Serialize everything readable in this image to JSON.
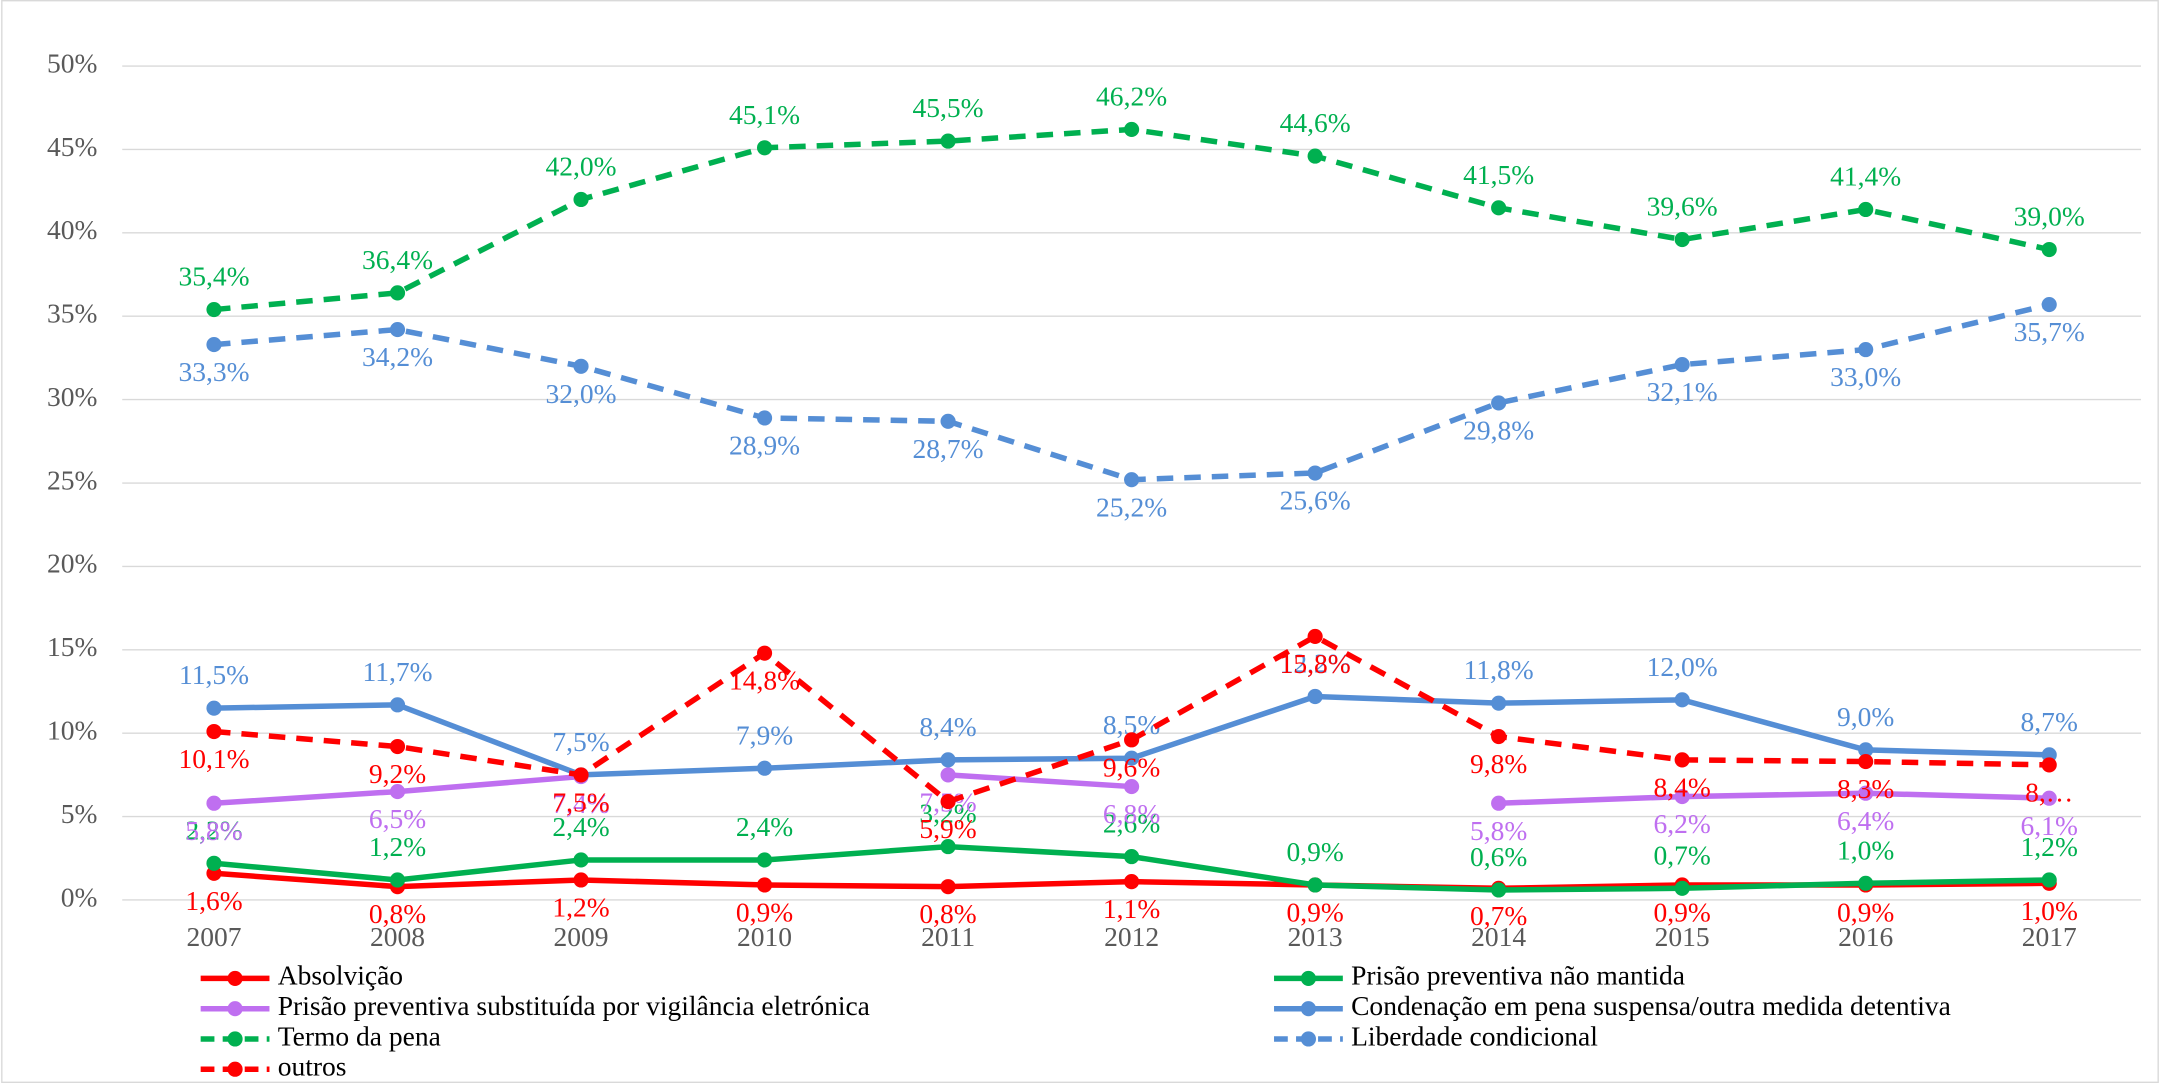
{
  "chart_data": {
    "type": "line",
    "categories": [
      "2007",
      "2008",
      "2009",
      "2010",
      "2011",
      "2012",
      "2013",
      "2014",
      "2015",
      "2016",
      "2017"
    ],
    "ylim": [
      0,
      50
    ],
    "yticks": [
      {
        "value": 0,
        "label": "0%"
      },
      {
        "value": 5,
        "label": "5%"
      },
      {
        "value": 10,
        "label": "10%"
      },
      {
        "value": 15,
        "label": "15%"
      },
      {
        "value": 20,
        "label": "20%"
      },
      {
        "value": 25,
        "label": "25%"
      },
      {
        "value": 30,
        "label": "30%"
      },
      {
        "value": 35,
        "label": "35%"
      },
      {
        "value": 40,
        "label": "40%"
      },
      {
        "value": 45,
        "label": "45%"
      },
      {
        "value": 50,
        "label": "50%"
      }
    ],
    "grid": true,
    "legend": "bottom",
    "series": [
      {
        "name": "Absolvição",
        "color": "#ff0000",
        "dashed": false,
        "values": [
          1.6,
          0.8,
          1.2,
          0.9,
          0.8,
          1.1,
          0.9,
          0.7,
          0.9,
          0.9,
          1.0
        ],
        "value_labels": [
          "1,6%",
          "0,8%",
          "1,2%",
          "0,9%",
          "0,8%",
          "1,1%",
          "0,9%",
          "0,7%",
          "0,9%",
          "0,9%",
          "1,0%"
        ]
      },
      {
        "name": "Prisão preventiva não mantida",
        "color": "#00b050",
        "dashed": false,
        "values": [
          2.2,
          1.2,
          2.4,
          2.4,
          3.2,
          2.6,
          0.9,
          0.6,
          0.7,
          1.0,
          1.2
        ],
        "value_labels": [
          "2,2%",
          "1,2%",
          "2,4%",
          "2,4%",
          "3,2%",
          "2,6%",
          "0,9%",
          "0,6%",
          "0,7%",
          "1,0%",
          "1,2%"
        ]
      },
      {
        "name": "Prisão preventiva substituída por vigilância eletrónica",
        "color": "#bf6ff0",
        "dashed": false,
        "values": [
          5.8,
          6.5,
          7.4,
          null,
          7.5,
          6.8,
          null,
          5.8,
          6.2,
          6.4,
          6.1
        ],
        "value_labels": [
          "5,8%",
          "6,5%",
          "7,4%",
          null,
          "7,5%",
          "6,8%",
          null,
          "5,8%",
          "6,2%",
          "6,4%",
          "6,1%"
        ]
      },
      {
        "name": "Condenação em pena suspensa/outra medida detentiva",
        "color": "#558ed5",
        "dashed": false,
        "values": [
          11.5,
          11.7,
          7.5,
          7.9,
          8.4,
          8.5,
          12.2,
          11.8,
          12.0,
          9.0,
          8.7
        ],
        "value_labels": [
          "11,5%",
          "11,7%",
          "7,5%",
          "7,9%",
          "8,4%",
          "8,5%",
          "12,2%",
          "11,8%",
          "12,0%",
          "9,0%",
          "8,7%"
        ]
      },
      {
        "name": "Termo da pena",
        "color": "#00b050",
        "dashed": true,
        "values": [
          35.4,
          36.4,
          42.0,
          45.1,
          45.5,
          46.2,
          44.6,
          41.5,
          39.6,
          41.4,
          39.0
        ],
        "value_labels": [
          "35,4%",
          "36,4%",
          "42,0%",
          "45,1%",
          "45,5%",
          "46,2%",
          "44,6%",
          "41,5%",
          "39,6%",
          "41,4%",
          "39,0%"
        ]
      },
      {
        "name": "Liberdade condicional",
        "color": "#558ed5",
        "dashed": true,
        "values": [
          33.3,
          34.2,
          32.0,
          28.9,
          28.7,
          25.2,
          25.6,
          29.8,
          32.1,
          33.0,
          35.7
        ],
        "value_labels": [
          "33,3%",
          "34,2%",
          "32,0%",
          "28,9%",
          "28,7%",
          "25,2%",
          "25,6%",
          "29,8%",
          "32,1%",
          "33,0%",
          "35,7%"
        ]
      },
      {
        "name": "outros",
        "color": "#ff0000",
        "dashed": true,
        "values": [
          10.1,
          9.2,
          7.5,
          14.8,
          5.9,
          9.6,
          15.8,
          9.8,
          8.4,
          8.3,
          8.1
        ],
        "value_labels": [
          "10,1%",
          "9,2%",
          "7,5%",
          "14,8%",
          "5,9%",
          "9,6%",
          "15,8%",
          "9,8%",
          "8,4%",
          "8,3%",
          "8,…"
        ]
      }
    ]
  }
}
